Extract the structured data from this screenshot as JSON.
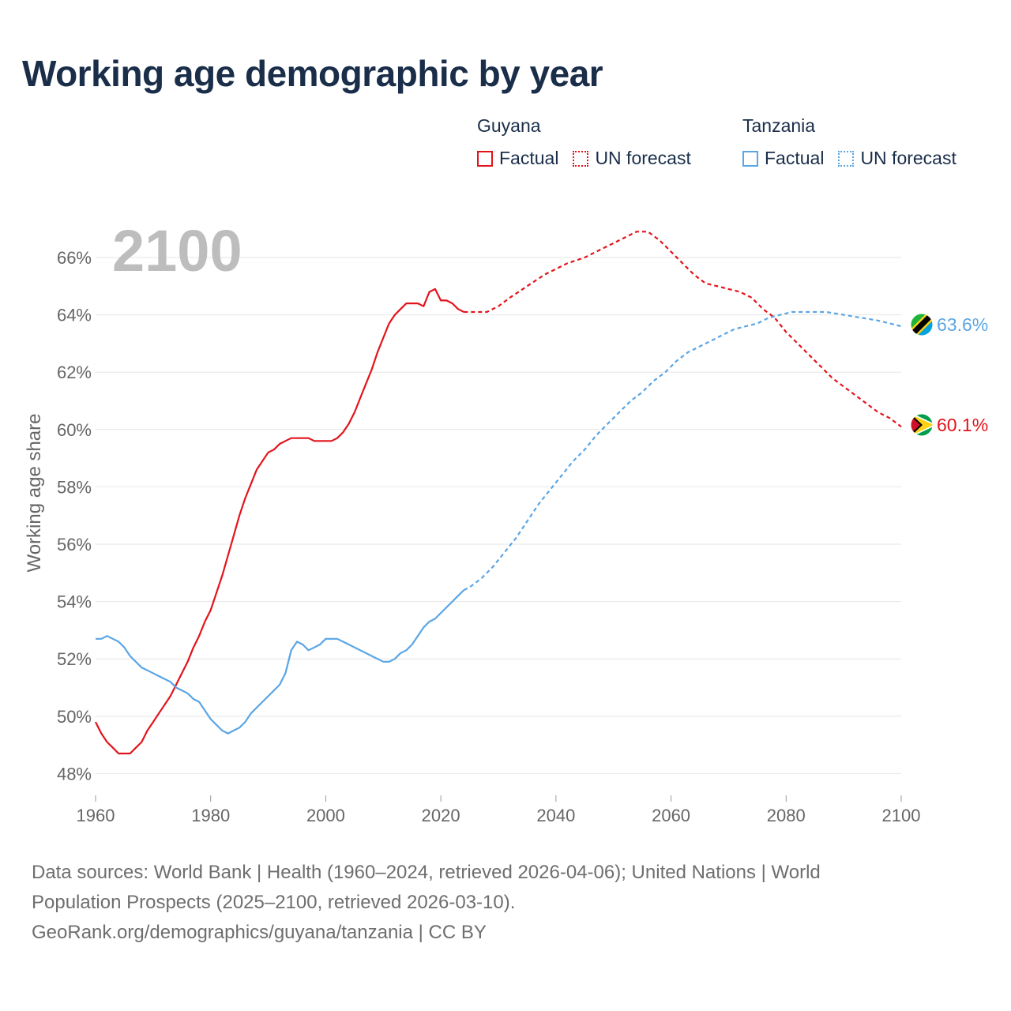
{
  "title": "Working age demographic by year",
  "legend": {
    "groups": [
      {
        "name": "Guyana",
        "color": "#e3131b",
        "factual_label": "Factual",
        "forecast_label": "UN forecast"
      },
      {
        "name": "Tanzania",
        "color": "#5aa5e4",
        "factual_label": "Factual",
        "forecast_label": "UN forecast"
      }
    ]
  },
  "footer": {
    "sources": "Data sources: World Bank | Health (1960–2024, retrieved 2026-04-06); United Nations | World Population Prospects (2025–2100, retrieved 2026-03-10).",
    "url": "GeoRank.org/demographics/guyana/tanzania | CC BY"
  },
  "chart_data": {
    "type": "line",
    "title": "Working age demographic by year",
    "year_overlay": "2100",
    "xlabel": "",
    "ylabel": "Working age share",
    "xlim": [
      1960,
      2100
    ],
    "ylim": [
      47.5,
      67.5
    ],
    "x_ticks": [
      1960,
      1980,
      2000,
      2020,
      2040,
      2060,
      2080,
      2100
    ],
    "y_ticks": [
      48,
      50,
      52,
      54,
      56,
      58,
      60,
      62,
      64,
      66
    ],
    "y_tick_suffix": "%",
    "grid": true,
    "factual_end_year": 2024,
    "series": [
      {
        "name": "Guyana",
        "color": "#e3131b",
        "end_label": "60.1%",
        "points": [
          [
            1960,
            49.8
          ],
          [
            1961,
            49.4
          ],
          [
            1962,
            49.1
          ],
          [
            1963,
            48.9
          ],
          [
            1964,
            48.7
          ],
          [
            1965,
            48.7
          ],
          [
            1966,
            48.7
          ],
          [
            1967,
            48.9
          ],
          [
            1968,
            49.1
          ],
          [
            1969,
            49.5
          ],
          [
            1970,
            49.8
          ],
          [
            1971,
            50.1
          ],
          [
            1972,
            50.4
          ],
          [
            1973,
            50.7
          ],
          [
            1974,
            51.1
          ],
          [
            1975,
            51.5
          ],
          [
            1976,
            51.9
          ],
          [
            1977,
            52.4
          ],
          [
            1978,
            52.8
          ],
          [
            1979,
            53.3
          ],
          [
            1980,
            53.7
          ],
          [
            1981,
            54.3
          ],
          [
            1982,
            54.9
          ],
          [
            1983,
            55.6
          ],
          [
            1984,
            56.3
          ],
          [
            1985,
            57.0
          ],
          [
            1986,
            57.6
          ],
          [
            1987,
            58.1
          ],
          [
            1988,
            58.6
          ],
          [
            1989,
            58.9
          ],
          [
            1990,
            59.2
          ],
          [
            1991,
            59.3
          ],
          [
            1992,
            59.5
          ],
          [
            1993,
            59.6
          ],
          [
            1994,
            59.7
          ],
          [
            1995,
            59.7
          ],
          [
            1996,
            59.7
          ],
          [
            1997,
            59.7
          ],
          [
            1998,
            59.6
          ],
          [
            1999,
            59.6
          ],
          [
            2000,
            59.6
          ],
          [
            2001,
            59.6
          ],
          [
            2002,
            59.7
          ],
          [
            2003,
            59.9
          ],
          [
            2004,
            60.2
          ],
          [
            2005,
            60.6
          ],
          [
            2006,
            61.1
          ],
          [
            2007,
            61.6
          ],
          [
            2008,
            62.1
          ],
          [
            2009,
            62.7
          ],
          [
            2010,
            63.2
          ],
          [
            2011,
            63.7
          ],
          [
            2012,
            64.0
          ],
          [
            2013,
            64.2
          ],
          [
            2014,
            64.4
          ],
          [
            2015,
            64.4
          ],
          [
            2016,
            64.4
          ],
          [
            2017,
            64.3
          ],
          [
            2018,
            64.8
          ],
          [
            2019,
            64.9
          ],
          [
            2020,
            64.5
          ],
          [
            2021,
            64.5
          ],
          [
            2022,
            64.4
          ],
          [
            2023,
            64.2
          ],
          [
            2024,
            64.1
          ],
          [
            2025,
            64.1
          ],
          [
            2027,
            64.1
          ],
          [
            2028,
            64.1
          ],
          [
            2030,
            64.3
          ],
          [
            2032,
            64.6
          ],
          [
            2035,
            65.0
          ],
          [
            2038,
            65.4
          ],
          [
            2040,
            65.6
          ],
          [
            2042,
            65.8
          ],
          [
            2045,
            66.0
          ],
          [
            2048,
            66.3
          ],
          [
            2050,
            66.5
          ],
          [
            2052,
            66.7
          ],
          [
            2054,
            66.9
          ],
          [
            2056,
            66.9
          ],
          [
            2058,
            66.6
          ],
          [
            2060,
            66.2
          ],
          [
            2062,
            65.8
          ],
          [
            2064,
            65.4
          ],
          [
            2066,
            65.1
          ],
          [
            2068,
            65.0
          ],
          [
            2070,
            64.9
          ],
          [
            2072,
            64.8
          ],
          [
            2074,
            64.6
          ],
          [
            2076,
            64.2
          ],
          [
            2078,
            63.9
          ],
          [
            2080,
            63.4
          ],
          [
            2082,
            63.0
          ],
          [
            2084,
            62.6
          ],
          [
            2086,
            62.2
          ],
          [
            2088,
            61.8
          ],
          [
            2090,
            61.5
          ],
          [
            2092,
            61.2
          ],
          [
            2094,
            60.9
          ],
          [
            2096,
            60.6
          ],
          [
            2098,
            60.4
          ],
          [
            2100,
            60.1
          ]
        ]
      },
      {
        "name": "Tanzania",
        "color": "#5aa5e4",
        "end_label": "63.6%",
        "points": [
          [
            1960,
            52.7
          ],
          [
            1961,
            52.7
          ],
          [
            1962,
            52.8
          ],
          [
            1963,
            52.7
          ],
          [
            1964,
            52.6
          ],
          [
            1965,
            52.4
          ],
          [
            1966,
            52.1
          ],
          [
            1967,
            51.9
          ],
          [
            1968,
            51.7
          ],
          [
            1969,
            51.6
          ],
          [
            1970,
            51.5
          ],
          [
            1971,
            51.4
          ],
          [
            1972,
            51.3
          ],
          [
            1973,
            51.2
          ],
          [
            1974,
            51.0
          ],
          [
            1975,
            50.9
          ],
          [
            1976,
            50.8
          ],
          [
            1977,
            50.6
          ],
          [
            1978,
            50.5
          ],
          [
            1979,
            50.2
          ],
          [
            1980,
            49.9
          ],
          [
            1981,
            49.7
          ],
          [
            1982,
            49.5
          ],
          [
            1983,
            49.4
          ],
          [
            1984,
            49.5
          ],
          [
            1985,
            49.6
          ],
          [
            1986,
            49.8
          ],
          [
            1987,
            50.1
          ],
          [
            1988,
            50.3
          ],
          [
            1989,
            50.5
          ],
          [
            1990,
            50.7
          ],
          [
            1991,
            50.9
          ],
          [
            1992,
            51.1
          ],
          [
            1993,
            51.5
          ],
          [
            1994,
            52.3
          ],
          [
            1995,
            52.6
          ],
          [
            1996,
            52.5
          ],
          [
            1997,
            52.3
          ],
          [
            1998,
            52.4
          ],
          [
            1999,
            52.5
          ],
          [
            2000,
            52.7
          ],
          [
            2001,
            52.7
          ],
          [
            2002,
            52.7
          ],
          [
            2003,
            52.6
          ],
          [
            2004,
            52.5
          ],
          [
            2005,
            52.4
          ],
          [
            2006,
            52.3
          ],
          [
            2007,
            52.2
          ],
          [
            2008,
            52.1
          ],
          [
            2009,
            52.0
          ],
          [
            2010,
            51.9
          ],
          [
            2011,
            51.9
          ],
          [
            2012,
            52.0
          ],
          [
            2013,
            52.2
          ],
          [
            2014,
            52.3
          ],
          [
            2015,
            52.5
          ],
          [
            2016,
            52.8
          ],
          [
            2017,
            53.1
          ],
          [
            2018,
            53.3
          ],
          [
            2019,
            53.4
          ],
          [
            2020,
            53.6
          ],
          [
            2021,
            53.8
          ],
          [
            2022,
            54.0
          ],
          [
            2023,
            54.2
          ],
          [
            2024,
            54.4
          ],
          [
            2025,
            54.5
          ],
          [
            2027,
            54.8
          ],
          [
            2029,
            55.2
          ],
          [
            2031,
            55.7
          ],
          [
            2033,
            56.2
          ],
          [
            2035,
            56.8
          ],
          [
            2037,
            57.4
          ],
          [
            2039,
            57.9
          ],
          [
            2041,
            58.4
          ],
          [
            2043,
            58.9
          ],
          [
            2045,
            59.3
          ],
          [
            2047,
            59.8
          ],
          [
            2049,
            60.2
          ],
          [
            2051,
            60.6
          ],
          [
            2053,
            61.0
          ],
          [
            2055,
            61.3
          ],
          [
            2057,
            61.7
          ],
          [
            2059,
            62.0
          ],
          [
            2061,
            62.4
          ],
          [
            2063,
            62.7
          ],
          [
            2065,
            62.9
          ],
          [
            2067,
            63.1
          ],
          [
            2069,
            63.3
          ],
          [
            2071,
            63.5
          ],
          [
            2073,
            63.6
          ],
          [
            2075,
            63.7
          ],
          [
            2077,
            63.9
          ],
          [
            2079,
            64.0
          ],
          [
            2081,
            64.1
          ],
          [
            2084,
            64.1
          ],
          [
            2087,
            64.1
          ],
          [
            2090,
            64.0
          ],
          [
            2093,
            63.9
          ],
          [
            2096,
            63.8
          ],
          [
            2098,
            63.7
          ],
          [
            2100,
            63.6
          ]
        ]
      }
    ]
  }
}
